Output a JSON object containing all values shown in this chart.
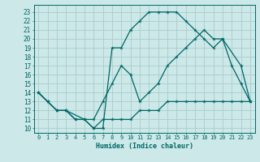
{
  "xlabel": "Humidex (Indice chaleur)",
  "background_color": "#cce8e8",
  "grid_color": "#aacccc",
  "line_color": "#006666",
  "xlim": [
    -0.5,
    23.5
  ],
  "ylim": [
    9.5,
    23.8
  ],
  "xticks": [
    0,
    1,
    2,
    3,
    4,
    5,
    6,
    7,
    8,
    9,
    10,
    11,
    12,
    13,
    14,
    15,
    16,
    17,
    18,
    19,
    20,
    21,
    22,
    23
  ],
  "yticks": [
    10,
    11,
    12,
    13,
    14,
    15,
    16,
    17,
    18,
    19,
    20,
    21,
    22,
    23
  ],
  "curve1_x": [
    0,
    1,
    2,
    3,
    4,
    5,
    6,
    7,
    8,
    9,
    10,
    11,
    12,
    13,
    14,
    15,
    16,
    17,
    18,
    19,
    20,
    22,
    23
  ],
  "curve1_y": [
    14,
    13,
    12,
    12,
    11,
    11,
    10,
    10,
    19,
    19,
    21,
    22,
    23,
    23,
    23,
    23,
    22,
    21,
    20,
    19,
    20,
    17,
    13
  ],
  "curve2_x": [
    0,
    1,
    2,
    3,
    5,
    6,
    7,
    8,
    9,
    10,
    11,
    12,
    13,
    14,
    15,
    16,
    17,
    18,
    19,
    20,
    21,
    22,
    23
  ],
  "curve2_y": [
    14,
    13,
    12,
    12,
    11,
    11,
    13,
    15,
    17,
    16,
    13,
    14,
    15,
    17,
    18,
    19,
    20,
    21,
    20,
    20,
    17,
    15,
    13
  ],
  "curve3_x": [
    0,
    1,
    2,
    3,
    4,
    5,
    6,
    7,
    8,
    9,
    10,
    11,
    12,
    13,
    14,
    15,
    16,
    17,
    18,
    19,
    20,
    21,
    22,
    23
  ],
  "curve3_y": [
    14,
    13,
    12,
    12,
    11,
    11,
    10,
    11,
    11,
    11,
    11,
    12,
    12,
    12,
    13,
    13,
    13,
    13,
    13,
    13,
    13,
    13,
    13,
    13
  ]
}
